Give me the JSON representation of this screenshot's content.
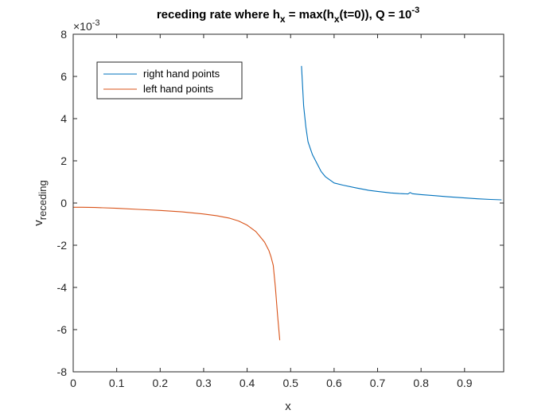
{
  "chart_data": {
    "type": "line",
    "title": {
      "prefix": "receding rate where h",
      "sub1": "x",
      "mid1": " = max(h",
      "sub2": "x",
      "mid2": "(t=0)), Q = 10",
      "sup": "-3"
    },
    "xlabel": "x",
    "ylabel": {
      "base": "v",
      "sub": "receding"
    },
    "y_exponent": {
      "base": "×10",
      "sup": "-3"
    },
    "xlim": [
      0,
      0.99
    ],
    "ylim": [
      -8,
      8
    ],
    "xticks": [
      0,
      0.1,
      0.2,
      0.3,
      0.4,
      0.5,
      0.6,
      0.7,
      0.8,
      0.9
    ],
    "xtick_labels": [
      "0",
      "0.1",
      "0.2",
      "0.3",
      "0.4",
      "0.5",
      "0.6",
      "0.7",
      "0.8",
      "0.9"
    ],
    "yticks": [
      -8,
      -6,
      -4,
      -2,
      0,
      2,
      4,
      6,
      8
    ],
    "ytick_labels": [
      "-8",
      "-6",
      "-4",
      "-2",
      "0",
      "2",
      "4",
      "6",
      "8"
    ],
    "grid": false,
    "legend": {
      "placement": "top-left"
    },
    "colors": {
      "right": "#0072BD",
      "left": "#D95319"
    },
    "series": [
      {
        "name": "right hand points",
        "color": "#0072BD",
        "x": [
          0.525,
          0.53,
          0.535,
          0.54,
          0.545,
          0.55,
          0.56,
          0.57,
          0.58,
          0.6,
          0.62,
          0.65,
          0.68,
          0.7,
          0.73,
          0.75,
          0.77,
          0.775,
          0.78,
          0.8,
          0.83,
          0.86,
          0.9,
          0.93,
          0.96,
          0.985
        ],
        "y": [
          6.5,
          4.6,
          3.6,
          2.9,
          2.6,
          2.3,
          1.9,
          1.5,
          1.25,
          0.95,
          0.85,
          0.72,
          0.6,
          0.55,
          0.48,
          0.45,
          0.43,
          0.5,
          0.44,
          0.4,
          0.35,
          0.3,
          0.24,
          0.2,
          0.17,
          0.15
        ]
      },
      {
        "name": "left hand points",
        "color": "#D95319",
        "x": [
          0.0,
          0.02,
          0.05,
          0.1,
          0.15,
          0.2,
          0.25,
          0.3,
          0.33,
          0.36,
          0.38,
          0.4,
          0.42,
          0.43,
          0.44,
          0.45,
          0.455,
          0.46,
          0.465,
          0.47,
          0.475
        ],
        "y": [
          -0.2,
          -0.2,
          -0.21,
          -0.25,
          -0.3,
          -0.35,
          -0.42,
          -0.52,
          -0.6,
          -0.72,
          -0.85,
          -1.05,
          -1.35,
          -1.6,
          -1.85,
          -2.25,
          -2.55,
          -2.95,
          -4.0,
          -5.3,
          -6.5
        ]
      }
    ]
  }
}
